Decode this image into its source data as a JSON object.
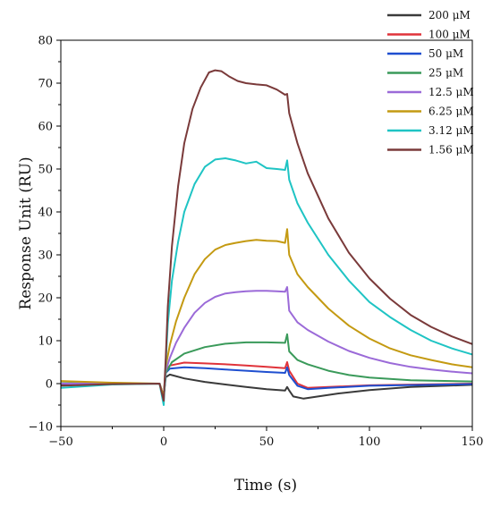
{
  "chart_data": {
    "type": "line",
    "title": "",
    "xlabel": "Time (s)",
    "ylabel": "Response Unit (RU)",
    "xlim": [
      -50,
      150
    ],
    "ylim": [
      -10,
      80
    ],
    "x_ticks": [
      -50,
      0,
      50,
      100,
      150
    ],
    "y_ticks": [
      -10,
      0,
      10,
      20,
      30,
      40,
      50,
      60,
      70,
      80
    ],
    "legend_position": "top-right",
    "grid": false,
    "series": [
      {
        "name": "200 μM",
        "color": "#3a3a3a",
        "points": [
          [
            -50,
            -0.3
          ],
          [
            -25,
            -0.1
          ],
          [
            -2,
            0
          ],
          [
            0,
            -3
          ],
          [
            1,
            1.5
          ],
          [
            3,
            2.1
          ],
          [
            10,
            1.2
          ],
          [
            20,
            0.4
          ],
          [
            30,
            -0.2
          ],
          [
            40,
            -0.8
          ],
          [
            50,
            -1.3
          ],
          [
            59,
            -1.6
          ],
          [
            60,
            -0.8
          ],
          [
            61,
            -1.6
          ],
          [
            63,
            -3
          ],
          [
            68,
            -3.5
          ],
          [
            75,
            -3
          ],
          [
            85,
            -2.3
          ],
          [
            100,
            -1.5
          ],
          [
            120,
            -0.8
          ],
          [
            150,
            -0.3
          ]
        ]
      },
      {
        "name": "100 μM",
        "color": "#e0333a",
        "points": [
          [
            -50,
            0
          ],
          [
            -25,
            0
          ],
          [
            -2,
            0
          ],
          [
            0,
            -3
          ],
          [
            1,
            3
          ],
          [
            3,
            4.2
          ],
          [
            10,
            4.9
          ],
          [
            20,
            4.7
          ],
          [
            30,
            4.5
          ],
          [
            40,
            4.2
          ],
          [
            50,
            3.9
          ],
          [
            59,
            3.6
          ],
          [
            60,
            5
          ],
          [
            61,
            3
          ],
          [
            65,
            0
          ],
          [
            70,
            -1
          ],
          [
            80,
            -0.8
          ],
          [
            100,
            -0.4
          ],
          [
            150,
            0
          ]
        ]
      },
      {
        "name": "50 μM",
        "color": "#1f4fd0",
        "points": [
          [
            -50,
            0
          ],
          [
            -25,
            0
          ],
          [
            -2,
            0
          ],
          [
            0,
            -3
          ],
          [
            1,
            2.5
          ],
          [
            3,
            3.5
          ],
          [
            10,
            3.8
          ],
          [
            20,
            3.6
          ],
          [
            30,
            3.3
          ],
          [
            40,
            3
          ],
          [
            50,
            2.7
          ],
          [
            59,
            2.5
          ],
          [
            60,
            3.8
          ],
          [
            61,
            2
          ],
          [
            65,
            -0.5
          ],
          [
            70,
            -1.3
          ],
          [
            80,
            -1
          ],
          [
            100,
            -0.5
          ],
          [
            150,
            -0.1
          ]
        ]
      },
      {
        "name": "25 μM",
        "color": "#3a9a5a",
        "points": [
          [
            -50,
            0.1
          ],
          [
            -25,
            0
          ],
          [
            -2,
            0
          ],
          [
            0,
            -3
          ],
          [
            1,
            2.5
          ],
          [
            4,
            5
          ],
          [
            10,
            7
          ],
          [
            20,
            8.5
          ],
          [
            30,
            9.3
          ],
          [
            40,
            9.6
          ],
          [
            50,
            9.6
          ],
          [
            59,
            9.5
          ],
          [
            60,
            11.5
          ],
          [
            61,
            7.5
          ],
          [
            65,
            5.5
          ],
          [
            70,
            4.5
          ],
          [
            80,
            3
          ],
          [
            90,
            2
          ],
          [
            100,
            1.4
          ],
          [
            120,
            0.8
          ],
          [
            150,
            0.5
          ]
        ]
      },
      {
        "name": "12.5 μM",
        "color": "#9b6ad8",
        "points": [
          [
            -50,
            0
          ],
          [
            -25,
            0
          ],
          [
            -2,
            0
          ],
          [
            0,
            -3
          ],
          [
            1,
            3
          ],
          [
            3,
            6
          ],
          [
            6,
            9.5
          ],
          [
            10,
            13
          ],
          [
            15,
            16.5
          ],
          [
            20,
            18.8
          ],
          [
            25,
            20.2
          ],
          [
            30,
            21
          ],
          [
            35,
            21.3
          ],
          [
            40,
            21.5
          ],
          [
            45,
            21.6
          ],
          [
            50,
            21.6
          ],
          [
            55,
            21.5
          ],
          [
            59,
            21.4
          ],
          [
            60,
            22.5
          ],
          [
            61,
            17
          ],
          [
            65,
            14.3
          ],
          [
            70,
            12.5
          ],
          [
            80,
            9.8
          ],
          [
            90,
            7.6
          ],
          [
            100,
            6
          ],
          [
            110,
            4.8
          ],
          [
            120,
            3.9
          ],
          [
            130,
            3.3
          ],
          [
            140,
            2.8
          ],
          [
            150,
            2.4
          ]
        ]
      },
      {
        "name": "6.25 μM",
        "color": "#c49a12",
        "points": [
          [
            -50,
            0.6
          ],
          [
            -25,
            0.2
          ],
          [
            -2,
            0
          ],
          [
            0,
            -3
          ],
          [
            1,
            4
          ],
          [
            3,
            9
          ],
          [
            6,
            14.5
          ],
          [
            10,
            20
          ],
          [
            15,
            25.5
          ],
          [
            20,
            29
          ],
          [
            25,
            31.2
          ],
          [
            30,
            32.3
          ],
          [
            35,
            32.8
          ],
          [
            40,
            33.2
          ],
          [
            45,
            33.5
          ],
          [
            50,
            33.3
          ],
          [
            55,
            33.2
          ],
          [
            59,
            32.8
          ],
          [
            60,
            36
          ],
          [
            61,
            30
          ],
          [
            65,
            25.5
          ],
          [
            70,
            22.5
          ],
          [
            80,
            17.5
          ],
          [
            90,
            13.5
          ],
          [
            100,
            10.5
          ],
          [
            110,
            8.2
          ],
          [
            120,
            6.6
          ],
          [
            130,
            5.5
          ],
          [
            140,
            4.5
          ],
          [
            150,
            3.8
          ]
        ]
      },
      {
        "name": "3.12 μM",
        "color": "#1fc4c4",
        "points": [
          [
            -50,
            -1
          ],
          [
            -25,
            -0.2
          ],
          [
            -2,
            0
          ],
          [
            0,
            -5
          ],
          [
            1,
            5
          ],
          [
            2,
            14
          ],
          [
            4,
            24
          ],
          [
            7,
            33
          ],
          [
            10,
            40
          ],
          [
            15,
            46.5
          ],
          [
            20,
            50.5
          ],
          [
            25,
            52.2
          ],
          [
            30,
            52.5
          ],
          [
            35,
            52
          ],
          [
            40,
            51.3
          ],
          [
            45,
            51.7
          ],
          [
            50,
            50.2
          ],
          [
            55,
            50
          ],
          [
            59,
            49.8
          ],
          [
            60,
            52
          ],
          [
            61,
            47.5
          ],
          [
            65,
            42
          ],
          [
            70,
            37.5
          ],
          [
            80,
            30
          ],
          [
            90,
            24
          ],
          [
            100,
            19
          ],
          [
            110,
            15.5
          ],
          [
            120,
            12.5
          ],
          [
            130,
            10
          ],
          [
            140,
            8.2
          ],
          [
            150,
            6.8
          ]
        ]
      },
      {
        "name": "1.56 μM",
        "color": "#7a3a3a",
        "points": [
          [
            -50,
            -0.5
          ],
          [
            -25,
            -0.1
          ],
          [
            -2,
            0
          ],
          [
            0,
            -4
          ],
          [
            1,
            6
          ],
          [
            2,
            18
          ],
          [
            4,
            32
          ],
          [
            7,
            46
          ],
          [
            10,
            56
          ],
          [
            14,
            64
          ],
          [
            18,
            69
          ],
          [
            22,
            72.5
          ],
          [
            25,
            73
          ],
          [
            28,
            72.8
          ],
          [
            32,
            71.5
          ],
          [
            36,
            70.5
          ],
          [
            40,
            70
          ],
          [
            45,
            69.7
          ],
          [
            50,
            69.5
          ],
          [
            55,
            68.5
          ],
          [
            59,
            67.3
          ],
          [
            60,
            67.5
          ],
          [
            61,
            63
          ],
          [
            65,
            56
          ],
          [
            70,
            49
          ],
          [
            80,
            38.5
          ],
          [
            90,
            30.5
          ],
          [
            100,
            24.5
          ],
          [
            110,
            19.8
          ],
          [
            120,
            16
          ],
          [
            130,
            13.2
          ],
          [
            140,
            11
          ],
          [
            150,
            9.2
          ]
        ]
      }
    ]
  }
}
